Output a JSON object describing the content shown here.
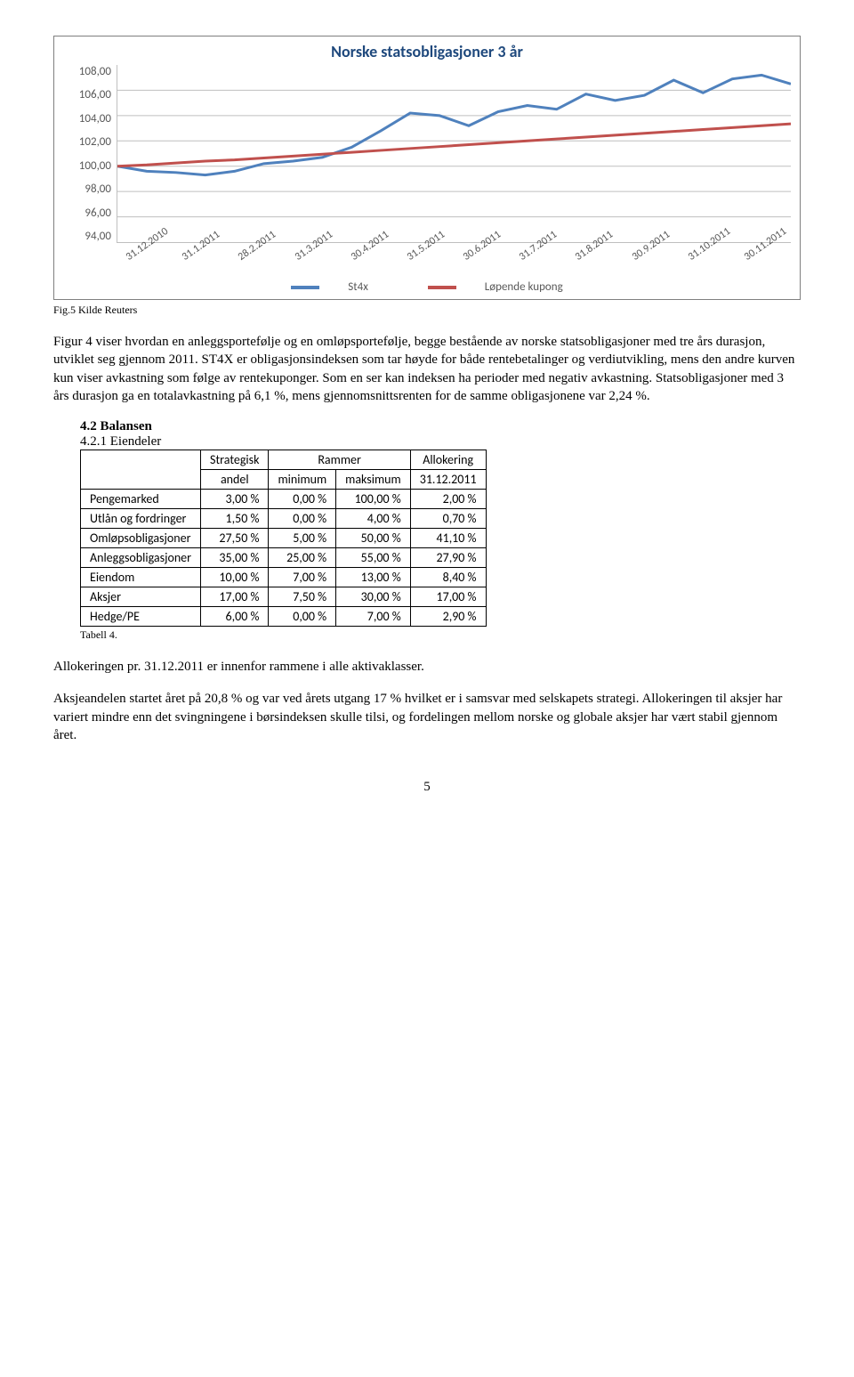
{
  "chart": {
    "type": "line",
    "title": "Norske statsobligasjoner 3 år",
    "title_color": "#1f497d",
    "title_fontsize": 18,
    "border_color": "#7f7f7f",
    "axis_color": "#bfbfbf",
    "tick_label_color": "#595959",
    "tick_fontsize": 13,
    "background_color": "#ffffff",
    "ylim": [
      94,
      108
    ],
    "ytick_step": 2,
    "yticks": [
      "108,00",
      "106,00",
      "104,00",
      "102,00",
      "100,00",
      "98,00",
      "96,00",
      "94,00"
    ],
    "xticks": [
      "31.12.2010",
      "31.1.2011",
      "28.2.2011",
      "31.3.2011",
      "30.4.2011",
      "31.5.2011",
      "30.6.2011",
      "31.7.2011",
      "31.8.2011",
      "30.9.2011",
      "31.10.2011",
      "30.11.2011"
    ],
    "series": [
      {
        "name": "St4x",
        "color": "#4f81bd",
        "line_width": 3,
        "values": [
          100.0,
          99.6,
          99.5,
          99.3,
          99.6,
          100.2,
          100.4,
          100.7,
          101.5,
          102.8,
          104.2,
          104.0,
          103.2,
          104.3,
          104.8,
          104.5,
          105.7,
          105.2,
          105.6,
          106.8,
          105.8,
          106.9,
          107.2,
          106.5
        ]
      },
      {
        "name": "Løpende kupong",
        "color": "#c0504d",
        "line_width": 3,
        "values": [
          100.0,
          100.1,
          100.25,
          100.4,
          100.5,
          100.65,
          100.8,
          100.95,
          101.1,
          101.25,
          101.4,
          101.55,
          101.7,
          101.85,
          102.0,
          102.15,
          102.3,
          102.45,
          102.6,
          102.75,
          102.9,
          103.05,
          103.2,
          103.35
        ]
      }
    ],
    "legend_items": [
      "St4x",
      "Løpende kupong"
    ]
  },
  "caption": "Fig.5 Kilde Reuters",
  "paragraphs": {
    "p1": "Figur 4 viser hvordan en anleggsportefølje og en omløpsportefølje, begge bestående av norske statsobligasjoner med tre års durasjon, utviklet seg gjennom 2011. ST4X er obligasjonsindeksen som tar høyde for både rentebetalinger og verdiutvikling, mens den andre kurven kun viser avkastning som følge av rentekuponger. Som en ser kan indeksen ha perioder med negativ avkastning. Statsobligasjoner med 3 års durasjon ga en totalavkastning på 6,1 %, mens gjennomsnittsrenten for de samme obligasjonene var 2,24 %.",
    "h1": "4.2 Balansen",
    "h2": "4.2.1   Eiendeler",
    "p2": "Allokeringen pr. 31.12.2011 er innenfor rammene i alle aktivaklasser.",
    "p3": "Aksjeandelen startet året på 20,8 % og var ved årets utgang 17 % hvilket er i samsvar med selskapets strategi. Allokeringen til aksjer har variert mindre enn det svingningene i børsindeksen skulle tilsi, og fordelingen mellom norske og globale aksjer har vært stabil gjennom året."
  },
  "table": {
    "header_row1": [
      "",
      "Strategisk",
      "Rammer",
      "",
      "Allokering"
    ],
    "header_row2": [
      "",
      "andel",
      "minimum",
      "maksimum",
      "31.12.2011"
    ],
    "rows": [
      [
        "Pengemarked",
        "3,00 %",
        "0,00 %",
        "100,00 %",
        "2,00 %"
      ],
      [
        "Utlån og fordringer",
        "1,50 %",
        "0,00 %",
        "4,00 %",
        "0,70 %"
      ],
      [
        "Omløpsobligasjoner",
        "27,50 %",
        "5,00 %",
        "50,00 %",
        "41,10 %"
      ],
      [
        "Anleggsobligasjoner",
        "35,00 %",
        "25,00 %",
        "55,00 %",
        "27,90 %"
      ],
      [
        "Eiendom",
        "10,00 %",
        "7,00 %",
        "13,00 %",
        "8,40 %"
      ],
      [
        "Aksjer",
        "17,00 %",
        "7,50 %",
        "30,00 %",
        "17,00 %"
      ],
      [
        "Hedge/PE",
        "6,00 %",
        "0,00 %",
        "7,00 %",
        "2,90 %"
      ]
    ],
    "caption": "Tabell 4."
  },
  "page_number": "5"
}
